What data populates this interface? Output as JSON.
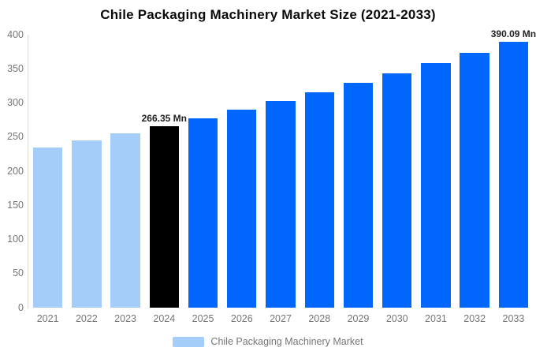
{
  "title": "Chile Packaging Machinery Market Size (2021-2033)",
  "legend": {
    "label": "Chile Packaging Machinery Market",
    "swatch_color": "#A5CDFA"
  },
  "colors": {
    "light_blue": "#A5CDFA",
    "accent_blue": "#0066FC",
    "highlight_black": "#000000",
    "axis_text": "#757575",
    "axis_line": "#DADADA",
    "annotation_text": "#222222",
    "title_text": "#0B0B0B",
    "background": "#FFFFFF"
  },
  "chart_data": {
    "type": "bar",
    "title": "Chile Packaging Machinery Market Size (2021-2033)",
    "categories": [
      "2021",
      "2022",
      "2023",
      "2024",
      "2025",
      "2026",
      "2027",
      "2028",
      "2029",
      "2030",
      "2031",
      "2032",
      "2033"
    ],
    "values": [
      234.43,
      244.59,
      255.19,
      266.35,
      277.88,
      289.91,
      302.46,
      315.55,
      329.21,
      343.46,
      358.33,
      373.84,
      390.09
    ],
    "unit": "Mn",
    "xlabel": "",
    "ylabel": "",
    "ylim": [
      0,
      400
    ],
    "yticks": [
      0,
      50,
      100,
      150,
      200,
      250,
      300,
      350,
      400
    ],
    "grid": false,
    "legend_position": "bottom",
    "legend_entries": [
      "Chile Packaging Machinery Market"
    ],
    "highlight_category": "2024",
    "bar_colors": [
      "#A5CDFA",
      "#A5CDFA",
      "#A5CDFA",
      "#000000",
      "#0066FC",
      "#0066FC",
      "#0066FC",
      "#0066FC",
      "#0066FC",
      "#0066FC",
      "#0066FC",
      "#0066FC",
      "#0066FC"
    ],
    "annotations": [
      {
        "category": "2024",
        "text": "266.35 Mn"
      },
      {
        "category": "2033",
        "text": "390.09 Mn"
      }
    ]
  }
}
